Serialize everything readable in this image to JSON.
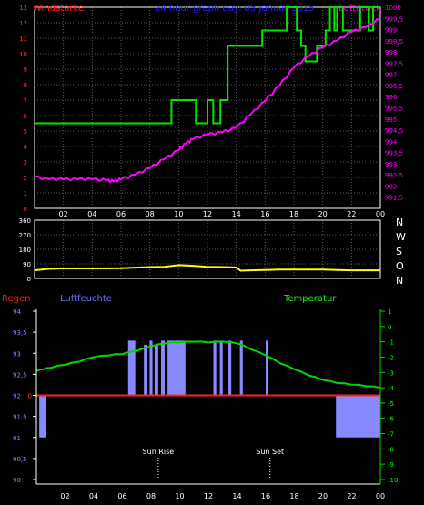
{
  "colors": {
    "background": "#000000",
    "grid": "#5a5a5a",
    "frame": "#ffffff",
    "tick_text": "#ffffff",
    "wind": "#00e400",
    "pressure": "#ff00ff",
    "direction": "#ffff00",
    "humidity": "#8888ff",
    "humidity_label": "#6f6fff",
    "temperature": "#00d800",
    "temperature_label": "#00ff00",
    "rain": "#ff2020",
    "windstaerke_label": "#ff2020",
    "title": "#2020ff"
  },
  "chart_data": [
    {
      "type": "line",
      "title": "24 hour graph day: 05 Januar 2015",
      "left_axis_label": "Windstärke",
      "right_axis_label": "Luftdruck",
      "x_ticks": [
        "02",
        "04",
        "06",
        "08",
        "10",
        "12",
        "14",
        "16",
        "18",
        "20",
        "22",
        "00"
      ],
      "left_y_ticks": [
        "0",
        "1",
        "2",
        "3",
        "4",
        "5",
        "6",
        "7",
        "8",
        "9",
        "10",
        "11",
        "12",
        "13"
      ],
      "right_y_ticks": [
        "991,5",
        "992",
        "992,5",
        "993",
        "993,5",
        "994",
        "994,5",
        "995",
        "995,5",
        "996",
        "996,5",
        "997",
        "997,5",
        "998",
        "998,5",
        "999",
        "999,5",
        "1000"
      ],
      "xlim": [
        0,
        24
      ],
      "left_ylim": [
        0,
        13
      ],
      "right_ylim": [
        991,
        1000
      ],
      "grid": true,
      "series": [
        {
          "name": "Windstärke",
          "axis": "left",
          "step": true,
          "x": [
            0,
            9.5,
            9.5,
            11.2,
            11.2,
            12,
            12,
            12.4,
            12.4,
            12.9,
            12.9,
            13.4,
            13.4,
            15.8,
            15.8,
            17.5,
            17.5,
            18.2,
            18.2,
            18.5,
            18.5,
            18.8,
            18.8,
            19.6,
            19.6,
            20.2,
            20.2,
            20.5,
            20.5,
            20.8,
            20.8,
            21,
            21,
            21.4,
            21.4,
            22.6,
            22.6,
            23.2,
            23.2,
            23.5,
            23.5,
            24
          ],
          "values": [
            5.5,
            5.5,
            7,
            7,
            5.5,
            5.5,
            7,
            7,
            5.5,
            5.5,
            7,
            7,
            10.5,
            10.5,
            11.5,
            11.5,
            13,
            13,
            11.5,
            11.5,
            10.5,
            10.5,
            9.5,
            9.5,
            10.5,
            10.5,
            11.5,
            11.5,
            13,
            13,
            11.5,
            11.5,
            13,
            13,
            11.5,
            11.5,
            13,
            13,
            11.5,
            11.5,
            13,
            13
          ]
        },
        {
          "name": "Luftdruck",
          "axis": "right",
          "x": [
            0,
            1,
            2,
            3,
            4,
            5,
            5.5,
            6,
            7,
            8,
            9,
            10,
            10.5,
            11,
            12,
            13,
            14,
            15,
            16,
            17,
            18,
            19,
            20,
            21,
            22,
            23,
            24
          ],
          "values": [
            992.4,
            992.3,
            992.3,
            992.3,
            992.3,
            992.25,
            992.2,
            992.3,
            992.5,
            992.8,
            993.2,
            993.6,
            993.9,
            994.1,
            994.3,
            994.4,
            994.6,
            995.2,
            995.8,
            996.5,
            997.3,
            997.8,
            998.2,
            998.5,
            998.9,
            999.1,
            999.5
          ]
        }
      ]
    },
    {
      "type": "line",
      "y_ticks": [
        "0",
        "90",
        "180",
        "270",
        "360"
      ],
      "right_labels": [
        "N",
        "W",
        "S",
        "O",
        "N"
      ],
      "xlim": [
        0,
        24
      ],
      "ylim": [
        0,
        360
      ],
      "grid": true,
      "series": [
        {
          "name": "Windrichtung",
          "x": [
            0,
            1,
            2,
            4,
            6,
            8,
            9,
            10,
            11,
            12,
            13,
            14,
            14.3,
            15,
            16,
            17,
            18,
            19,
            20,
            21,
            22,
            23,
            24
          ],
          "values": [
            50,
            60,
            62,
            62,
            63,
            70,
            72,
            82,
            78,
            72,
            70,
            68,
            48,
            50,
            52,
            55,
            55,
            55,
            55,
            52,
            50,
            50,
            50
          ]
        }
      ]
    },
    {
      "type": "line",
      "labels": {
        "left1": "Regen",
        "left2": "Luftfeuchte",
        "right": "Temperatur",
        "sunrise": "Sun Rise",
        "sunset": "Sun Set"
      },
      "x_ticks": [
        "02",
        "04",
        "06",
        "08",
        "10",
        "12",
        "14",
        "16",
        "18",
        "20",
        "22",
        "00"
      ],
      "humidity_ticks": [
        "90",
        "90,5",
        "91",
        "91,5",
        "92",
        "92,5",
        "93",
        "93,5",
        "94"
      ],
      "rain_ticks": [
        "0"
      ],
      "temperature_ticks": [
        "-10",
        "-9",
        "-8",
        "-7",
        "-6",
        "-5",
        "-4",
        "-3",
        "-2",
        "-1",
        "0",
        "1"
      ],
      "xlim": [
        0,
        24
      ],
      "humidity_ylim": [
        90,
        94
      ],
      "temperature_ylim": [
        -10,
        1
      ],
      "sunrise_x": 8.5,
      "sunset_x": 16.3,
      "series": [
        {
          "name": "Temperatur",
          "x": [
            0,
            0.5,
            1,
            2,
            3,
            4,
            5,
            6,
            7,
            8,
            9,
            10,
            11,
            12,
            13,
            14,
            15,
            16,
            17,
            18,
            19,
            20,
            21,
            22,
            23,
            24
          ],
          "values": [
            -2.9,
            -2.8,
            -2.7,
            -2.5,
            -2.3,
            -2.0,
            -1.9,
            -1.8,
            -1.6,
            -1.3,
            -1.1,
            -1.05,
            -1.0,
            -1.05,
            -1.0,
            -1.1,
            -1.5,
            -1.9,
            -2.4,
            -2.8,
            -3.2,
            -3.5,
            -3.7,
            -3.8,
            -3.9,
            -4.0
          ]
        },
        {
          "name": "Luftfeuchte",
          "type": "bar",
          "baseline": 92,
          "bars": [
            {
              "x0": 0.2,
              "x1": 0.7,
              "value": 91
            },
            {
              "x0": 6.4,
              "x1": 6.9,
              "value": 93.3
            },
            {
              "x0": 7.5,
              "x1": 7.75,
              "value": 93.2
            },
            {
              "x0": 7.9,
              "x1": 8.1,
              "value": 93.3
            },
            {
              "x0": 8.25,
              "x1": 8.5,
              "value": 93.2
            },
            {
              "x0": 8.7,
              "x1": 8.95,
              "value": 93.3
            },
            {
              "x0": 9.15,
              "x1": 10.4,
              "value": 93.3
            },
            {
              "x0": 12.35,
              "x1": 12.55,
              "value": 93.3
            },
            {
              "x0": 12.8,
              "x1": 13.0,
              "value": 93.3
            },
            {
              "x0": 13.4,
              "x1": 13.6,
              "value": 93.3
            },
            {
              "x0": 14.2,
              "x1": 14.4,
              "value": 93.3
            },
            {
              "x0": 16.0,
              "x1": 16.15,
              "value": 93.3
            },
            {
              "x0": 20.9,
              "x1": 24,
              "value": 91
            }
          ]
        },
        {
          "name": "Regen",
          "x": [
            0,
            24
          ],
          "values": [
            0,
            0
          ]
        }
      ]
    }
  ]
}
